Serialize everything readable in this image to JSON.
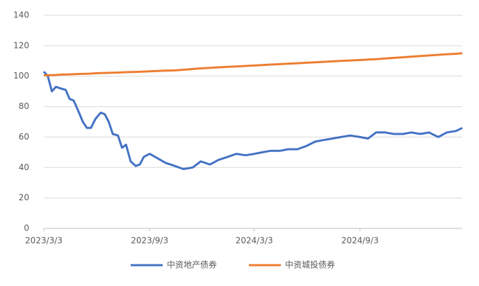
{
  "chart_data": {
    "type": "line",
    "x": [
      "2023/3/3",
      "2023/3/10",
      "2023/3/17",
      "2023/3/24",
      "2023/4/1",
      "2023/4/10",
      "2023/4/17",
      "2023/4/24",
      "2023/5/1",
      "2023/5/10",
      "2023/5/17",
      "2023/5/24",
      "2023/6/1",
      "2023/6/10",
      "2023/6/17",
      "2023/6/24",
      "2023/7/1",
      "2023/7/10",
      "2023/7/17",
      "2023/7/24",
      "2023/8/1",
      "2023/8/10",
      "2023/8/17",
      "2023/8/24",
      "2023/9/3",
      "2023/9/17",
      "2023/10/1",
      "2023/10/17",
      "2023/11/1",
      "2023/11/17",
      "2023/12/1",
      "2023/12/17",
      "2024/1/1",
      "2024/1/17",
      "2024/2/1",
      "2024/2/17",
      "2024/3/3",
      "2024/3/17",
      "2024/4/1",
      "2024/4/17",
      "2024/5/1",
      "2024/5/17",
      "2024/6/1",
      "2024/6/17",
      "2024/7/1",
      "2024/7/17",
      "2024/8/1",
      "2024/8/17",
      "2024/9/3",
      "2024/9/17",
      "2024/10/1",
      "2024/10/17",
      "2024/11/1",
      "2024/11/17",
      "2024/12/1",
      "2024/12/17",
      "2025/1/1",
      "2025/1/17",
      "2025/2/1",
      "2025/2/17",
      "2025/2/28"
    ],
    "series": [
      {
        "name": "中资地产债券",
        "color": "#4472c4",
        "values": [
          103,
          100,
          90,
          93,
          92,
          91,
          85,
          84,
          78,
          70,
          66,
          66,
          72,
          76,
          75,
          70,
          62,
          61,
          53,
          55,
          44,
          41,
          42,
          47,
          49,
          46,
          43,
          41,
          39,
          40,
          44,
          42,
          45,
          47,
          49,
          48,
          49,
          50,
          51,
          51,
          52,
          52,
          54,
          57,
          58,
          59,
          60,
          61,
          60,
          59,
          63,
          63,
          62,
          62,
          63,
          62,
          63,
          60,
          63,
          64,
          66
        ]
      },
      {
        "name": "中资城投债券",
        "color": "#ed7d31",
        "values": [
          100.5,
          100.6,
          100.7,
          100.8,
          101,
          101.1,
          101.2,
          101.3,
          101.4,
          101.5,
          101.6,
          101.7,
          101.9,
          102,
          102.1,
          102.2,
          102.3,
          102.4,
          102.5,
          102.6,
          102.7,
          102.8,
          102.9,
          103,
          103.2,
          103.4,
          103.6,
          103.8,
          104.2,
          104.7,
          105.1,
          105.5,
          105.8,
          106.1,
          106.4,
          106.7,
          107,
          107.3,
          107.6,
          107.9,
          108.2,
          108.5,
          108.8,
          109.1,
          109.4,
          109.7,
          110,
          110.3,
          110.6,
          110.9,
          111.2,
          111.6,
          112,
          112.4,
          112.8,
          113.2,
          113.6,
          114,
          114.4,
          114.7,
          115
        ]
      }
    ],
    "xlim": [
      "2023/3/3",
      "2025/2/28"
    ],
    "xticks": [
      "2023/3/3",
      "2023/9/3",
      "2024/3/3",
      "2024/9/3"
    ],
    "ylim": [
      0,
      140
    ],
    "yticks": [
      0,
      20,
      40,
      60,
      80,
      100,
      120,
      140
    ],
    "grid": true,
    "legend": "bottom"
  }
}
